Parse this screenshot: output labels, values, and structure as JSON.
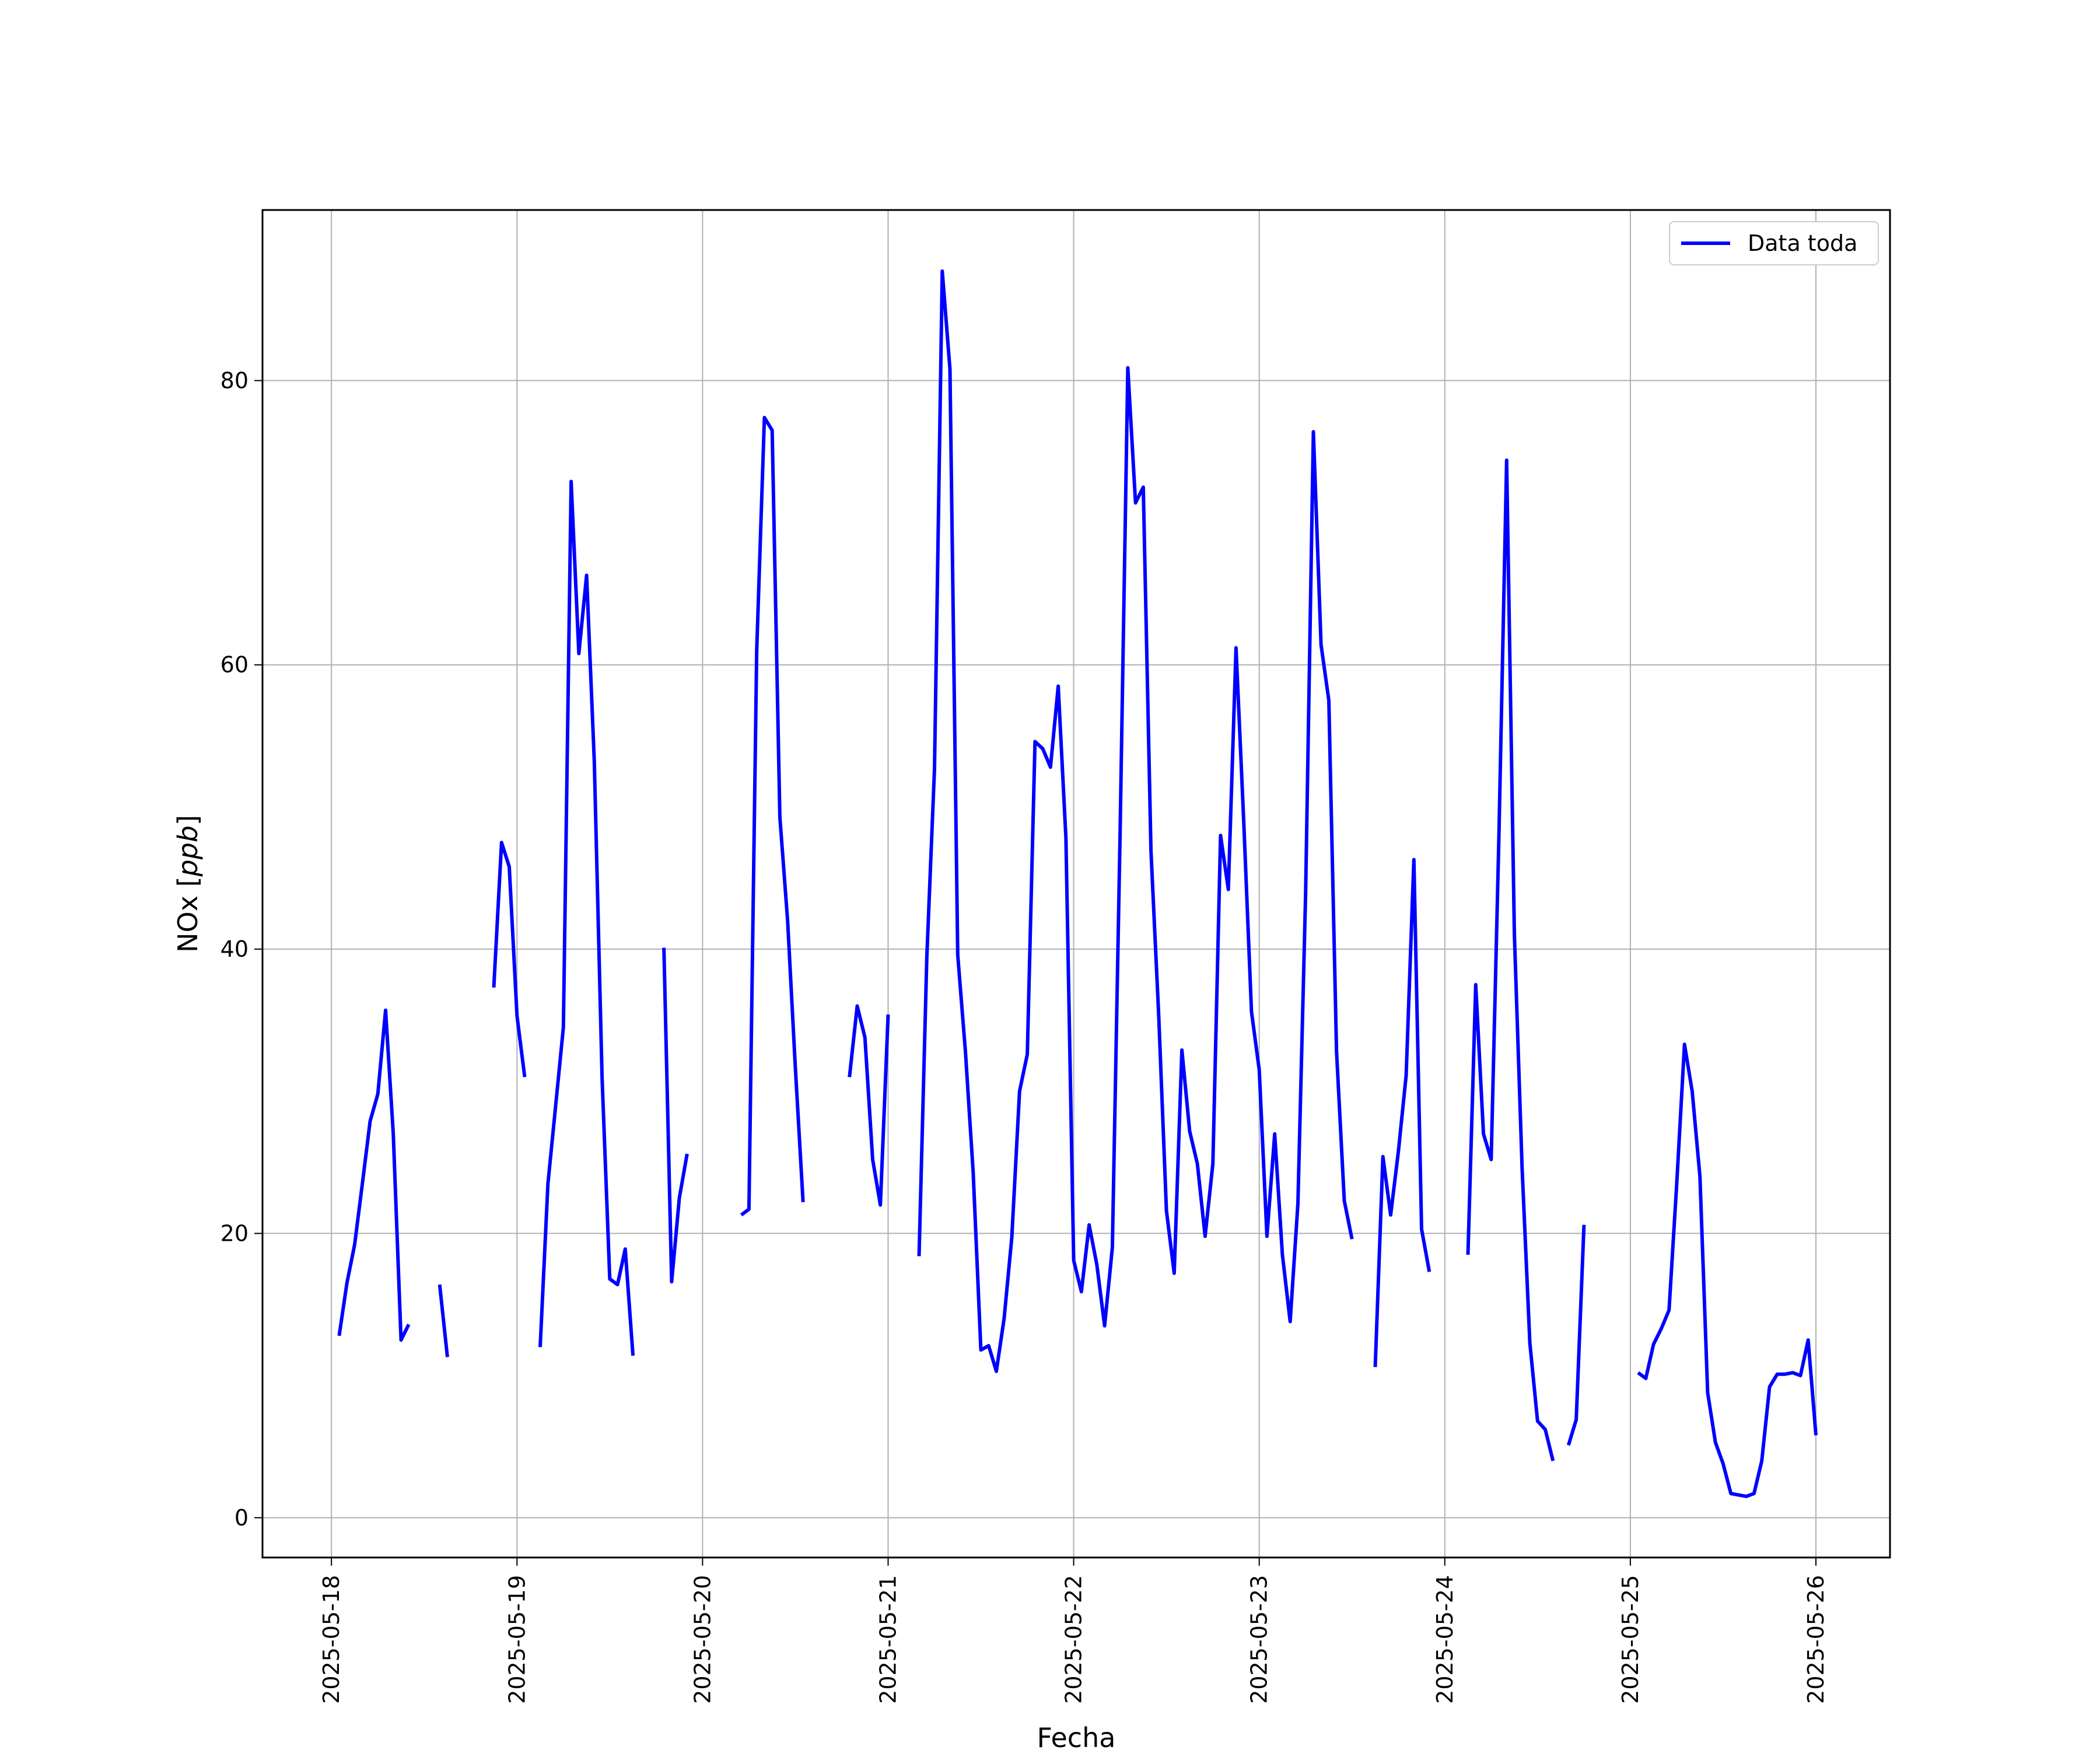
{
  "chart_data": {
    "type": "line",
    "xlabel": "Fecha",
    "ylabel": "NOx [ppb]",
    "ylabel_prefix": "NOx [",
    "ylabel_unit": "ppb",
    "ylabel_suffix": "]",
    "x_ticks": [
      "2025-05-18",
      "2025-05-19",
      "2025-05-20",
      "2025-05-21",
      "2025-05-22",
      "2025-05-23",
      "2025-05-24",
      "2025-05-25",
      "2025-05-26"
    ],
    "y_ticks": [
      0,
      20,
      40,
      60,
      80
    ],
    "xlim": [
      "2025-05-17 15:05",
      "2025-05-26 09:35"
    ],
    "ylim": [
      -2.8,
      92
    ],
    "grid": true,
    "legend_position": "top-right",
    "series": [
      {
        "name": "Data toda",
        "color": "#0000ff",
        "segments": [
          [
            [
              "2025-05-18 01:00",
              12.8
            ],
            [
              "2025-05-18 02:00",
              16.5
            ],
            [
              "2025-05-18 03:00",
              19.2
            ],
            [
              "2025-05-18 04:00",
              23.5
            ],
            [
              "2025-05-18 05:00",
              27.9
            ],
            [
              "2025-05-18 06:00",
              29.8
            ],
            [
              "2025-05-18 07:00",
              35.7
            ],
            [
              "2025-05-18 08:00",
              27.0
            ],
            [
              "2025-05-18 09:00",
              12.5
            ],
            [
              "2025-05-18 10:00",
              13.6
            ]
          ],
          [
            [
              "2025-05-18 14:00",
              16.4
            ],
            [
              "2025-05-18 15:00",
              11.3
            ]
          ],
          [
            [
              "2025-05-18 21:00",
              37.3
            ],
            [
              "2025-05-18 22:00",
              47.5
            ],
            [
              "2025-05-18 23:00",
              45.8
            ],
            [
              "2025-05-19 00:00",
              35.3
            ],
            [
              "2025-05-19 01:00",
              31.0
            ]
          ],
          [
            [
              "2025-05-19 03:00",
              12.0
            ],
            [
              "2025-05-19 04:00",
              23.5
            ],
            [
              "2025-05-19 05:00",
              29.0
            ],
            [
              "2025-05-19 06:00",
              34.5
            ],
            [
              "2025-05-19 07:00",
              72.9
            ],
            [
              "2025-05-19 08:00",
              60.8
            ],
            [
              "2025-05-19 09:00",
              66.3
            ],
            [
              "2025-05-19 10:00",
              53.2
            ],
            [
              "2025-05-19 11:00",
              31.0
            ],
            [
              "2025-05-19 12:00",
              16.8
            ],
            [
              "2025-05-19 13:00",
              16.4
            ],
            [
              "2025-05-19 14:00",
              18.9
            ],
            [
              "2025-05-19 15:00",
              11.4
            ]
          ],
          [
            [
              "2025-05-19 19:00",
              40.1
            ],
            [
              "2025-05-19 20:00",
              16.6
            ],
            [
              "2025-05-19 21:00",
              22.5
            ],
            [
              "2025-05-19 22:00",
              25.6
            ]
          ],
          [
            [
              "2025-05-20 05:00",
              21.3
            ],
            [
              "2025-05-20 06:00",
              21.7
            ],
            [
              "2025-05-20 07:00",
              61.0
            ],
            [
              "2025-05-20 08:00",
              77.4
            ],
            [
              "2025-05-20 09:00",
              76.5
            ],
            [
              "2025-05-20 10:00",
              49.3
            ],
            [
              "2025-05-20 11:00",
              42.0
            ],
            [
              "2025-05-20 12:00",
              31.7
            ],
            [
              "2025-05-20 13:00",
              22.2
            ]
          ],
          [
            [
              "2025-05-20 19:00",
              31.0
            ],
            [
              "2025-05-20 20:00",
              36.0
            ],
            [
              "2025-05-20 21:00",
              33.8
            ],
            [
              "2025-05-20 22:00",
              25.2
            ],
            [
              "2025-05-20 23:00",
              22.0
            ],
            [
              "2025-05-21 00:00",
              35.4
            ]
          ],
          [
            [
              "2025-05-21 04:00",
              18.4
            ],
            [
              "2025-05-21 05:00",
              39.4
            ],
            [
              "2025-05-21 06:00",
              52.7
            ],
            [
              "2025-05-21 07:00",
              87.7
            ],
            [
              "2025-05-21 08:00",
              80.8
            ],
            [
              "2025-05-21 09:00",
              39.6
            ],
            [
              "2025-05-21 10:00",
              32.8
            ],
            [
              "2025-05-21 11:00",
              24.3
            ],
            [
              "2025-05-21 12:00",
              11.8
            ],
            [
              "2025-05-21 13:00",
              12.1
            ],
            [
              "2025-05-21 14:00",
              10.3
            ],
            [
              "2025-05-21 15:00",
              14.0
            ],
            [
              "2025-05-21 16:00",
              19.7
            ],
            [
              "2025-05-21 17:00",
              30.0
            ],
            [
              "2025-05-21 18:00",
              32.6
            ],
            [
              "2025-05-21 19:00",
              54.6
            ],
            [
              "2025-05-21 20:00",
              54.1
            ],
            [
              "2025-05-21 21:00",
              52.8
            ],
            [
              "2025-05-21 22:00",
              58.5
            ],
            [
              "2025-05-21 23:00",
              47.8
            ],
            [
              "2025-05-22 00:00",
              18.1
            ],
            [
              "2025-05-22 01:00",
              15.9
            ],
            [
              "2025-05-22 02:00",
              20.6
            ],
            [
              "2025-05-22 03:00",
              17.8
            ],
            [
              "2025-05-22 04:00",
              13.5
            ],
            [
              "2025-05-22 05:00",
              19.0
            ],
            [
              "2025-05-22 06:00",
              48.0
            ],
            [
              "2025-05-22 07:00",
              80.9
            ],
            [
              "2025-05-22 08:00",
              71.4
            ],
            [
              "2025-05-22 09:00",
              72.5
            ],
            [
              "2025-05-22 10:00",
              46.9
            ],
            [
              "2025-05-22 11:00",
              35.3
            ],
            [
              "2025-05-22 12:00",
              21.6
            ],
            [
              "2025-05-22 13:00",
              17.2
            ],
            [
              "2025-05-22 14:00",
              32.9
            ],
            [
              "2025-05-22 15:00",
              27.2
            ],
            [
              "2025-05-22 16:00",
              24.9
            ],
            [
              "2025-05-22 17:00",
              19.8
            ],
            [
              "2025-05-22 18:00",
              24.9
            ],
            [
              "2025-05-22 19:00",
              48.0
            ],
            [
              "2025-05-22 20:00",
              44.2
            ],
            [
              "2025-05-22 21:00",
              61.2
            ],
            [
              "2025-05-22 22:00",
              48.9
            ],
            [
              "2025-05-22 23:00",
              35.6
            ],
            [
              "2025-05-23 00:00",
              31.5
            ],
            [
              "2025-05-23 01:00",
              19.8
            ],
            [
              "2025-05-23 02:00",
              27.0
            ],
            [
              "2025-05-23 03:00",
              18.5
            ],
            [
              "2025-05-23 04:00",
              13.8
            ],
            [
              "2025-05-23 05:00",
              22.1
            ],
            [
              "2025-05-23 06:00",
              43.9
            ],
            [
              "2025-05-23 07:00",
              76.4
            ],
            [
              "2025-05-23 08:00",
              61.4
            ],
            [
              "2025-05-23 09:00",
              57.5
            ],
            [
              "2025-05-23 10:00",
              32.8
            ],
            [
              "2025-05-23 11:00",
              22.3
            ],
            [
              "2025-05-23 12:00",
              19.6
            ]
          ],
          [
            [
              "2025-05-23 15:00",
              10.6
            ],
            [
              "2025-05-23 16:00",
              25.4
            ],
            [
              "2025-05-23 17:00",
              21.3
            ],
            [
              "2025-05-23 18:00",
              25.8
            ],
            [
              "2025-05-23 19:00",
              31.1
            ],
            [
              "2025-05-23 20:00",
              46.3
            ],
            [
              "2025-05-23 21:00",
              20.3
            ],
            [
              "2025-05-23 22:00",
              17.3
            ]
          ],
          [
            [
              "2025-05-24 03:00",
              18.5
            ],
            [
              "2025-05-24 04:00",
              37.5
            ],
            [
              "2025-05-24 05:00",
              27.0
            ],
            [
              "2025-05-24 06:00",
              25.2
            ],
            [
              "2025-05-24 07:00",
              48.0
            ],
            [
              "2025-05-24 08:00",
              74.4
            ],
            [
              "2025-05-24 09:00",
              41.0
            ],
            [
              "2025-05-24 10:00",
              24.6
            ],
            [
              "2025-05-24 11:00",
              12.3
            ],
            [
              "2025-05-24 12:00",
              6.8
            ],
            [
              "2025-05-24 13:00",
              6.2
            ],
            [
              "2025-05-24 14:00",
              4.0
            ]
          ],
          [
            [
              "2025-05-24 16:00",
              5.1
            ],
            [
              "2025-05-24 17:00",
              6.9
            ],
            [
              "2025-05-24 18:00",
              20.6
            ]
          ],
          [
            [
              "2025-05-25 01:00",
              10.2
            ],
            [
              "2025-05-25 02:00",
              9.8
            ],
            [
              "2025-05-25 03:00",
              12.2
            ],
            [
              "2025-05-25 04:00",
              13.3
            ],
            [
              "2025-05-25 05:00",
              14.6
            ],
            [
              "2025-05-25 06:00",
              23.5
            ],
            [
              "2025-05-25 07:00",
              33.3
            ],
            [
              "2025-05-25 08:00",
              30.0
            ],
            [
              "2025-05-25 09:00",
              24.0
            ],
            [
              "2025-05-25 10:00",
              8.8
            ],
            [
              "2025-05-25 11:00",
              5.3
            ],
            [
              "2025-05-25 12:00",
              3.8
            ],
            [
              "2025-05-25 13:00",
              1.7
            ],
            [
              "2025-05-25 14:00",
              1.6
            ],
            [
              "2025-05-25 15:00",
              1.5
            ],
            [
              "2025-05-25 16:00",
              1.7
            ],
            [
              "2025-05-25 17:00",
              4.0
            ],
            [
              "2025-05-25 18:00",
              9.2
            ],
            [
              "2025-05-25 19:00",
              10.1
            ],
            [
              "2025-05-25 20:00",
              10.1
            ],
            [
              "2025-05-25 21:00",
              10.2
            ],
            [
              "2025-05-25 22:00",
              10.0
            ],
            [
              "2025-05-25 23:00",
              12.5
            ],
            [
              "2025-05-26 00:00",
              5.8
            ]
          ]
        ]
      }
    ]
  }
}
